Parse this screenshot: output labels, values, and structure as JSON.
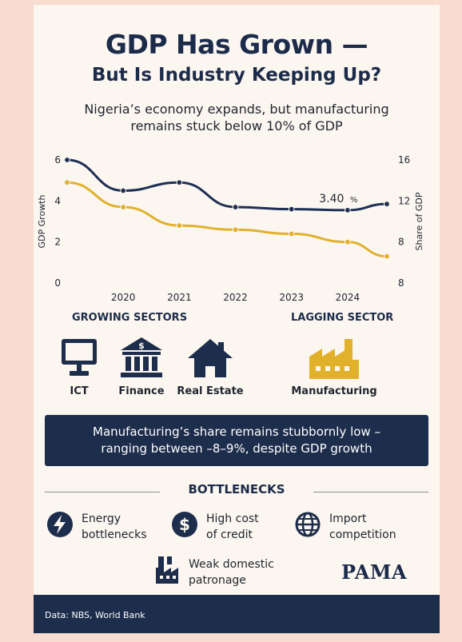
{
  "header": {
    "title_line1": "GDP Has Grown —",
    "title_line2": "But Is Industry Keeping Up?",
    "subtitle_line1": "Nigeria’s economy expands, but manufacturing",
    "subtitle_line2": "remains stuck below 10% of GDP"
  },
  "chart_data": {
    "type": "line",
    "x": [
      2019,
      2020,
      2021,
      2022,
      2023,
      2024,
      2024.7
    ],
    "x_tick_labels": [
      "2020",
      "2021",
      "2022",
      "2023",
      "2024"
    ],
    "x_tick_values": [
      2020,
      2021,
      2022,
      2023,
      2024
    ],
    "xlim": [
      2019,
      2024.7
    ],
    "left_axis": {
      "label": "GDP Growth",
      "ylim": [
        0,
        6
      ],
      "ticks": [
        "0",
        "2",
        "4",
        "6"
      ]
    },
    "right_axis": {
      "label": "Share of GDP",
      "ylim": [
        8,
        16
      ],
      "ticks": [
        "8",
        "8",
        "12",
        "16"
      ]
    },
    "series": [
      {
        "axis": "left",
        "color": "#1f2f55",
        "values": [
          6.0,
          4.5,
          4.9,
          3.7,
          3.6,
          3.55,
          3.85
        ]
      },
      {
        "axis": "left",
        "color": "#e2b12c",
        "values": [
          4.9,
          3.7,
          2.8,
          2.6,
          2.4,
          2.0,
          1.3
        ]
      }
    ],
    "annotation": {
      "value": "3.40",
      "unit": "%"
    },
    "grid": false,
    "legend": "none"
  },
  "sectors": {
    "growing_heading": "GROWING SECTORS",
    "lagging_heading": "LAGGING SECTOR",
    "growing": [
      {
        "icon": "monitor-icon",
        "label": "ICT"
      },
      {
        "icon": "bank-icon",
        "label": "Finance"
      },
      {
        "icon": "house-icon",
        "label": "Real Estate"
      }
    ],
    "lagging": {
      "icon": "factory-icon",
      "label": "Manufacturing"
    }
  },
  "banner": {
    "line1": "Manufacturing’s share remains stubbornly low –",
    "line2": "ranging between –8–9%, despite GDP growth"
  },
  "bottlenecks": {
    "title": "BOTTLENECKS",
    "items": [
      {
        "icon": "lightning-icon",
        "line1": "Energy",
        "line2": "bottlenecks"
      },
      {
        "icon": "dollar-icon",
        "line1": "High cost",
        "line2": "of credit"
      },
      {
        "icon": "globe-icon",
        "line1": "Import",
        "line2": "competition"
      },
      {
        "icon": "factory-icon",
        "line1": "Weak domestic",
        "line2": "patronage"
      }
    ]
  },
  "brand": "PAMA",
  "footer": "Data: NBS, World Bank",
  "colors": {
    "navy": "#1d2d4c",
    "gold": "#e2b12c",
    "background": "#fbf6ef"
  }
}
